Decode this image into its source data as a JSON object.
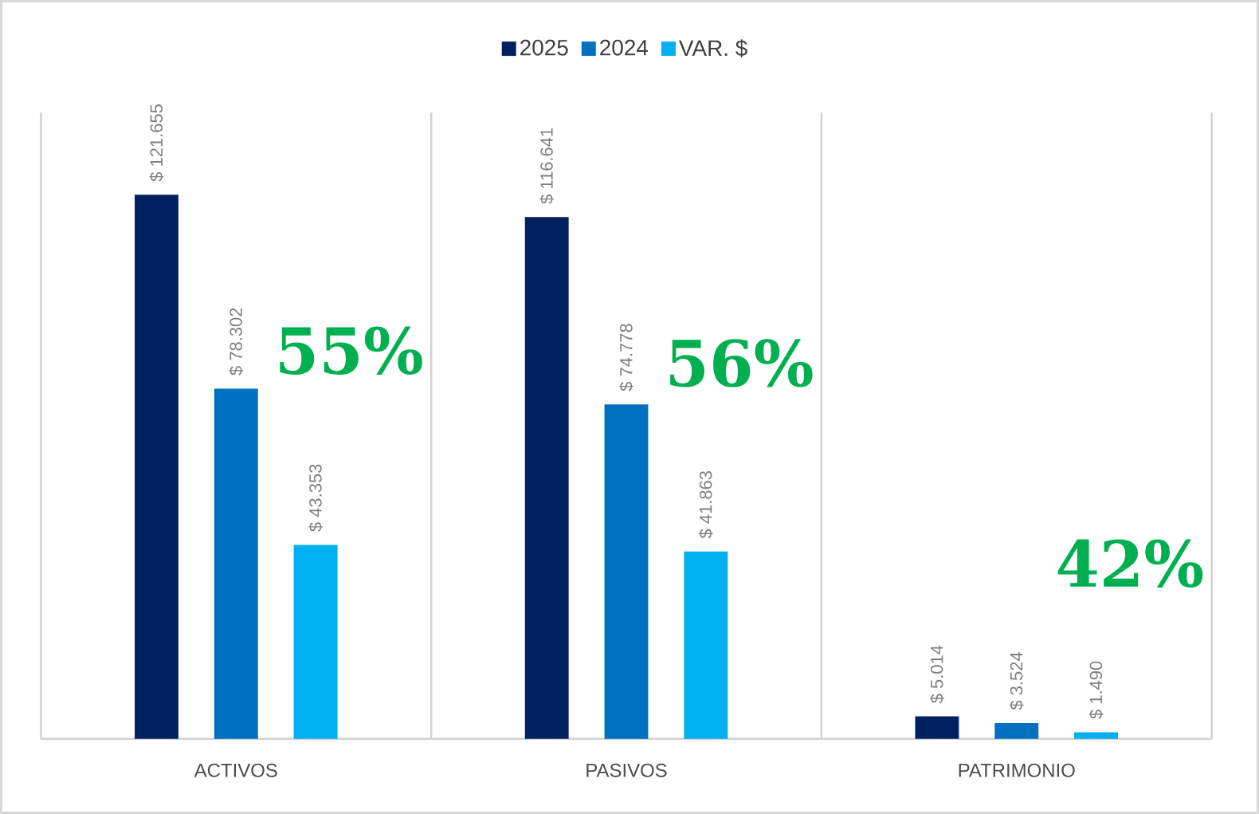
{
  "chart_data": {
    "type": "bar",
    "categories": [
      "ACTIVOS",
      "PASIVOS",
      "PATRIMONIO"
    ],
    "series": [
      {
        "name": "2025",
        "color": "#002060",
        "values": [
          121655,
          116641,
          5014
        ],
        "value_labels": [
          "$ 121.655",
          "$ 116.641",
          "$ 5.014"
        ]
      },
      {
        "name": "2024",
        "color": "#0070c0",
        "values": [
          78302,
          74778,
          3524
        ],
        "value_labels": [
          "$ 78.302",
          "$ 74.778",
          "$ 3.524"
        ]
      },
      {
        "name": "VAR. $",
        "color": "#00b0f0",
        "values": [
          43353,
          41863,
          1490
        ],
        "value_labels": [
          "$ 43.353",
          "$ 41.863",
          "$ 1.490"
        ]
      }
    ],
    "ylim": [
      0,
      140000
    ],
    "tick_labels": "x",
    "grid": "x",
    "legend": "top",
    "annotations": [
      "55%",
      "56%",
      "42%"
    ]
  }
}
